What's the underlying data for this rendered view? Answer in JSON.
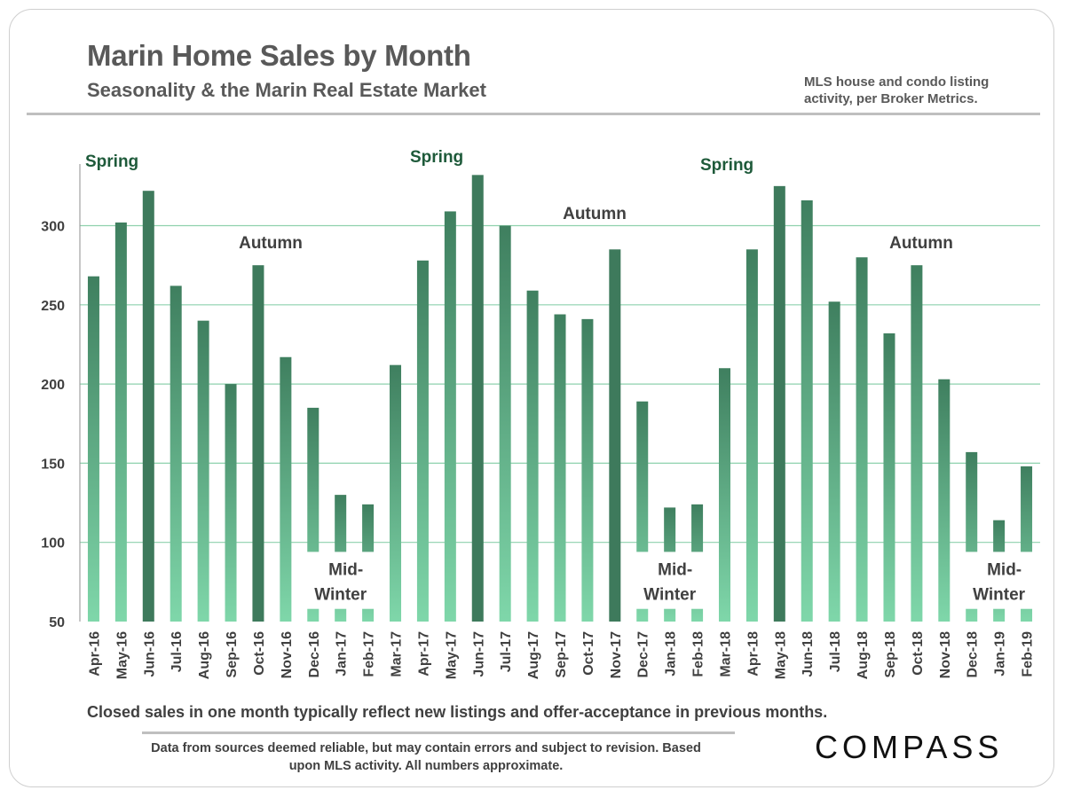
{
  "header": {
    "title": "Marin Home Sales by Month",
    "subtitle": "Seasonality & the Marin Real Estate Market",
    "source_note": "MLS house and condo listing activity, per Broker Metrics."
  },
  "chart_data": {
    "type": "bar",
    "title": "Marin Home Sales by Month",
    "xlabel": "",
    "ylabel": "",
    "ylim": [
      50,
      340
    ],
    "yticks": [
      50,
      100,
      150,
      200,
      250,
      300
    ],
    "grid": true,
    "categories": [
      "Apr-16",
      "May-16",
      "Jun-16",
      "Jul-16",
      "Aug-16",
      "Sep-16",
      "Oct-16",
      "Nov-16",
      "Dec-16",
      "Jan-17",
      "Feb-17",
      "Mar-17",
      "Apr-17",
      "May-17",
      "Jun-17",
      "Jul-17",
      "Aug-17",
      "Sep-17",
      "Oct-17",
      "Nov-17",
      "Dec-17",
      "Jan-18",
      "Feb-18",
      "Mar-18",
      "Apr-18",
      "May-18",
      "Jun-18",
      "Jul-18",
      "Aug-18",
      "Sep-18",
      "Oct-18",
      "Nov-18",
      "Dec-18",
      "Jan-19",
      "Feb-19"
    ],
    "values": [
      268,
      302,
      322,
      262,
      240,
      200,
      275,
      217,
      185,
      130,
      124,
      212,
      278,
      309,
      332,
      300,
      259,
      244,
      241,
      285,
      189,
      122,
      124,
      210,
      285,
      325,
      316,
      252,
      280,
      232,
      275,
      203,
      157,
      114,
      148
    ],
    "highlighted": [
      "Jun-16",
      "Oct-16",
      "Jun-17",
      "Nov-17",
      "May-18"
    ],
    "annotations": [
      {
        "text": "Spring",
        "type": "season",
        "near": "Apr-16"
      },
      {
        "text": "Autumn",
        "type": "period",
        "near": "Oct-16"
      },
      {
        "text": "Spring",
        "type": "season",
        "near": "Apr-17"
      },
      {
        "text": "Autumn",
        "type": "period",
        "near": "Sep-17"
      },
      {
        "text": "Spring",
        "type": "season",
        "near": "Apr-18"
      },
      {
        "text": "Autumn",
        "type": "period",
        "near": "Oct-18"
      },
      {
        "text": "Mid-Winter",
        "type": "winter",
        "near": "Jan-17"
      },
      {
        "text": "Mid-Winter",
        "type": "winter",
        "near": "Jan-18"
      },
      {
        "text": "Mid-Winter",
        "type": "winter",
        "near": "Jan-19"
      }
    ]
  },
  "colors": {
    "bar_top": "#3f7f5f",
    "bar_bottom": "#7fd7aa",
    "bar_highlight": "#3e7a5c",
    "grid": "#8ed1ad",
    "spring_label": "#1e5a3a",
    "axis_text": "#404040"
  },
  "caption": "Closed sales in one month typically reflect new listings and offer-acceptance in previous months.",
  "footer": {
    "disclaimer": "Data from sources deemed reliable, but may contain errors and subject to revision. Based upon MLS activity. All numbers approximate.",
    "logo": "COMPASS"
  }
}
